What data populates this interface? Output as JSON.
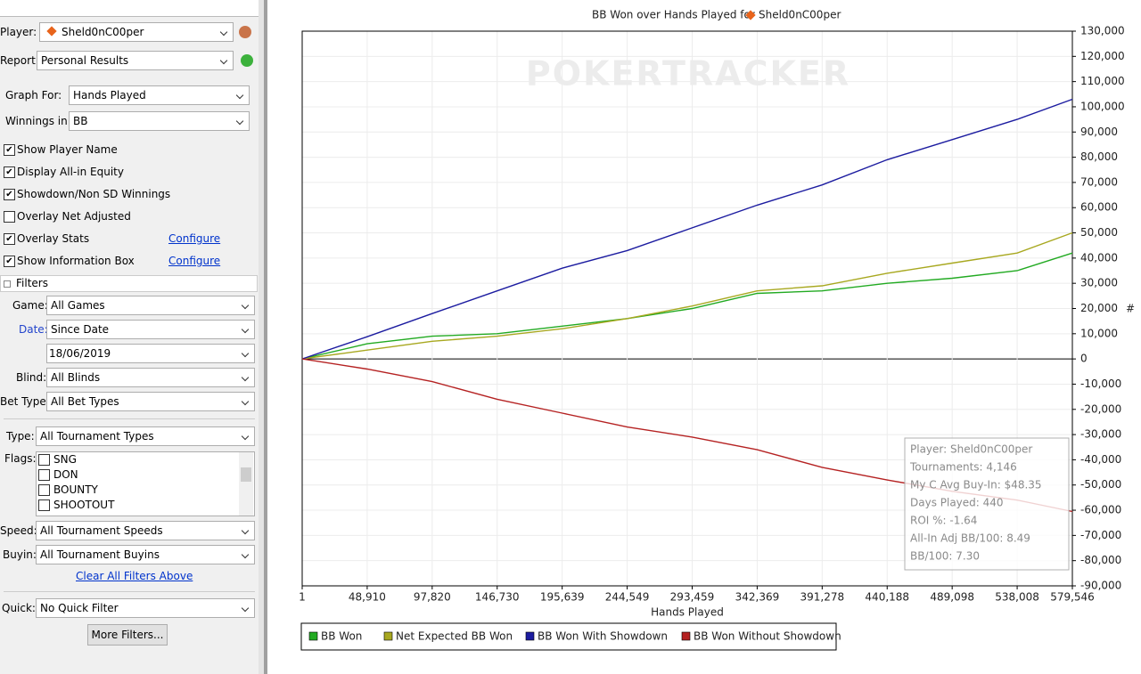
{
  "sidebar": {
    "selects": [
      {
        "label": "Player:",
        "value": "Sheld0nC00per"
      },
      {
        "label": "Report:",
        "value": "Personal Results"
      },
      {
        "label": "Graph For:",
        "value": "Hands Played"
      },
      {
        "label": "Winnings in:",
        "value": "BB"
      },
      {
        "label": "Game:",
        "value": "All Games"
      },
      {
        "label": "Date:",
        "value": "Since Date"
      },
      {
        "label": "Blind:",
        "value": "All Blinds"
      },
      {
        "label": "Bet Type:",
        "value": "All Bet Types"
      },
      {
        "label": "Type:",
        "value": "All Tournament Types"
      },
      {
        "label": "Speed:",
        "value": "All Tournament Speeds"
      },
      {
        "label": "Buyin:",
        "value": "All Tournament Buyins"
      },
      {
        "label": "Quick:",
        "value": "No Quick Filter"
      }
    ],
    "checkboxes": [
      {
        "label": "Show Player Name",
        "checked": true
      },
      {
        "label": "Display All-in Equity",
        "checked": true
      },
      {
        "label": "Showdown/Non SD Winnings",
        "checked": true
      },
      {
        "label": "Overlay Net Adjusted",
        "checked": false
      },
      {
        "label": "Overlay Stats",
        "checked": true,
        "link": "Configure"
      },
      {
        "label": "Show Information Box",
        "checked": true,
        "link": "Configure"
      }
    ],
    "filters_header": "Filters",
    "date_value": "18/06/2019",
    "flags_label": "Flags:",
    "flags": [
      "SNG",
      "DON",
      "BOUNTY",
      "SHOOTOUT"
    ],
    "clear_link": "Clear All Filters Above",
    "more_button": "More Filters..."
  },
  "chart_data": {
    "type": "line",
    "title": "BB Won over Hands Played for",
    "title_player": "Sheld0nC00per",
    "watermark": "POKERTRACKER",
    "x_label": "Hands Played",
    "y_label": "#",
    "xlim": [
      1,
      579546
    ],
    "ylim": [
      -90000,
      130000
    ],
    "x": [
      1,
      48910,
      97820,
      146730,
      195639,
      244549,
      293459,
      342369,
      391278,
      440188,
      489098,
      538008,
      579546
    ],
    "xticks": [
      1,
      {
        "value": 48910,
        "label": "48,910"
      },
      {
        "value": 97820,
        "label": "97,820"
      },
      {
        "value": 146730,
        "label": "146,730"
      },
      {
        "value": 195639,
        "label": "195,639"
      },
      {
        "value": 244549,
        "label": "244,549"
      },
      {
        "value": 293459,
        "label": "293,459"
      },
      {
        "value": 342369,
        "label": "342,369"
      },
      {
        "value": 391278,
        "label": "391,278"
      },
      {
        "value": 440188,
        "label": "440,188"
      },
      {
        "value": 489098,
        "label": "489,098"
      },
      {
        "value": 538008,
        "label": "538,008"
      },
      {
        "value": 579546,
        "label": "579,546"
      }
    ],
    "yticks": [
      {
        "value": 130000,
        "label": "130,000"
      },
      {
        "value": 120000,
        "label": "120,000"
      },
      {
        "value": 110000,
        "label": "110,000"
      },
      {
        "value": 100000,
        "label": "100,000"
      },
      {
        "value": 90000,
        "label": "90,000"
      },
      {
        "value": 80000,
        "label": "80,000"
      },
      {
        "value": 70000,
        "label": "70,000"
      },
      {
        "value": 60000,
        "label": "60,000"
      },
      {
        "value": 50000,
        "label": "50,000"
      },
      {
        "value": 40000,
        "label": "40,000"
      },
      {
        "value": 30000,
        "label": "30,000"
      },
      {
        "value": 20000,
        "label": "20,000"
      },
      {
        "value": 10000,
        "label": "10,000"
      },
      0,
      {
        "value": -10000,
        "label": "-10,000"
      },
      {
        "value": -20000,
        "label": "-20,000"
      },
      {
        "value": -30000,
        "label": "-30,000"
      },
      {
        "value": -40000,
        "label": "-40,000"
      },
      {
        "value": -50000,
        "label": "-50,000"
      },
      {
        "value": -60000,
        "label": "-60,000"
      },
      {
        "value": -70000,
        "label": "-70,000"
      },
      {
        "value": -80000,
        "label": "-80,000"
      },
      {
        "value": -90000,
        "label": "-90,000"
      }
    ],
    "grid": true,
    "series": [
      {
        "name": "BB Won",
        "color": "#22aa22",
        "values": [
          0,
          6000,
          9000,
          10000,
          13000,
          16000,
          20000,
          26000,
          27000,
          30000,
          32000,
          35000,
          42000
        ]
      },
      {
        "name": "Net Expected BB Won",
        "color": "#a8a820",
        "values": [
          0,
          3500,
          7000,
          9000,
          12000,
          16000,
          21000,
          27000,
          29000,
          34000,
          38000,
          42000,
          50000
        ]
      },
      {
        "name": "BB Won With Showdown",
        "color": "#1c1ca0",
        "values": [
          0,
          8800,
          18000,
          27000,
          36000,
          43000,
          52000,
          61000,
          69000,
          79000,
          87000,
          95000,
          103000
        ]
      },
      {
        "name": "BB Won Without Showdown",
        "color": "#b52222",
        "values": [
          0,
          -4000,
          -9000,
          -16000,
          -21500,
          -27000,
          -31000,
          -36000,
          -43000,
          -48000,
          -52500,
          -56000,
          -60500
        ]
      }
    ],
    "info_box": [
      "Player: Sheld0nC00per",
      "Tournaments: 4,146",
      "My C Avg Buy-In: $48.35",
      "Days Played: 440",
      "ROI %: -1.64",
      "All-In Adj BB/100: 8.49",
      "BB/100: 7.30"
    ]
  }
}
